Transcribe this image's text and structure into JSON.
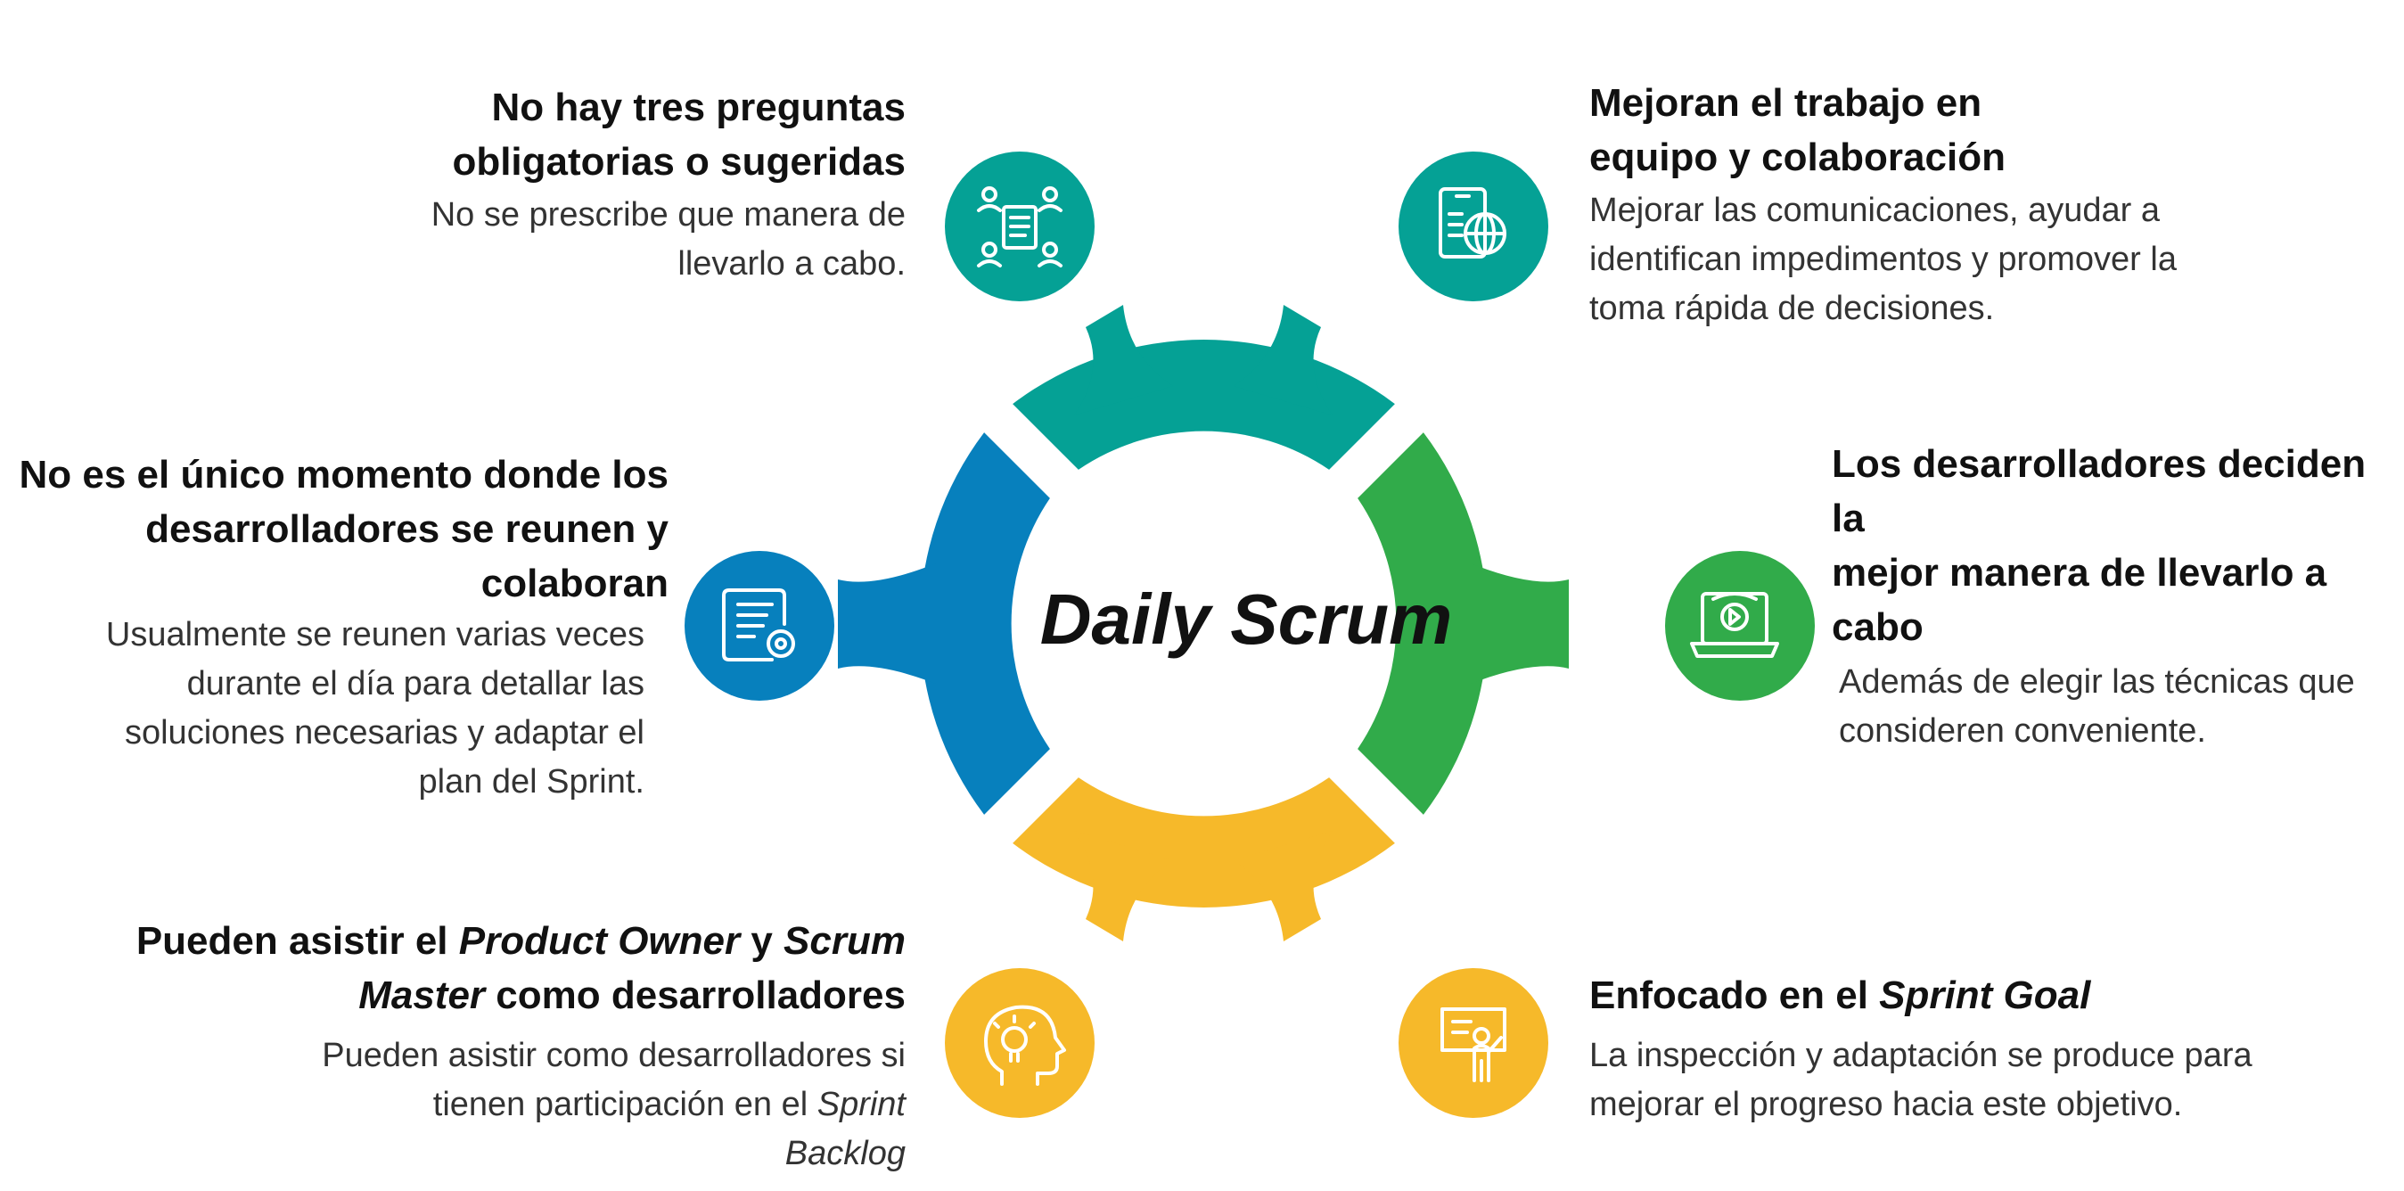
{
  "center": {
    "title": "Daily Scrum"
  },
  "colors": {
    "teal": "#05A195",
    "blue": "#0780BD",
    "green": "#31AB4A",
    "yellow": "#F6B92A"
  },
  "blocks": {
    "top_left": {
      "icon": "team-document-icon",
      "title": [
        "No hay tres preguntas",
        "obligatorias o sugeridas"
      ],
      "desc": [
        "No se prescribe que manera de",
        "llevarlo a cabo."
      ]
    },
    "top_right": {
      "icon": "tablet-globe-icon",
      "title": [
        "Mejoran el trabajo en",
        "equipo y colaboración"
      ],
      "desc": [
        "Mejorar las comunicaciones, ayudar a",
        "identifican impedimentos y promover la",
        "toma rápida de decisiones."
      ]
    },
    "mid_left": {
      "icon": "certificate-gear-icon",
      "title": [
        "No es el único momento donde los",
        "desarrolladores se reunen y",
        "colaboran"
      ],
      "desc": [
        "Usualmente se reunen varias veces",
        "durante el día para detallar las",
        "soluciones necesarias y adaptar el",
        "plan del Sprint."
      ]
    },
    "mid_right": {
      "icon": "laptop-video-icon",
      "title": [
        "Los desarrolladores deciden la",
        "mejor manera de llevarlo a",
        "cabo"
      ],
      "desc": [
        "Además de elegir las técnicas que",
        "consideren conveniente."
      ]
    },
    "bottom_left": {
      "icon": "head-lightbulb-icon",
      "title_parts": [
        "Pueden asistir el ",
        "Product Owner",
        " y ",
        "Scrum",
        "Master",
        " como desarrolladores"
      ],
      "desc_parts": [
        "Pueden asistir como desarrolladores si",
        "tienen participación en el ",
        "Sprint",
        "Backlog"
      ]
    },
    "bottom_right": {
      "icon": "presenter-board-icon",
      "title_parts": [
        "Enfocado en el ",
        "Sprint Goal"
      ],
      "desc": [
        "La inspección y adaptación se produce para",
        "mejorar el progreso hacia este objetivo."
      ]
    }
  }
}
